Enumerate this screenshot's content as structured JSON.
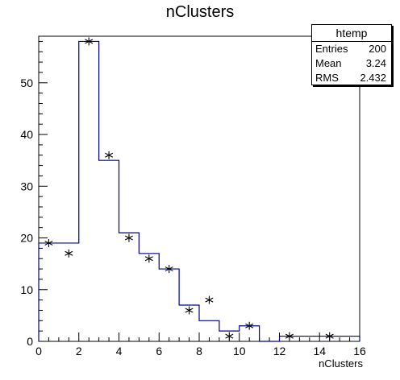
{
  "chart_data": {
    "type": "bar",
    "title": "nClusters",
    "xlabel": "nClusters",
    "ylabel": "",
    "xlim": [
      0,
      16
    ],
    "ylim": [
      0,
      59
    ],
    "x_ticks": [
      0,
      2,
      4,
      6,
      8,
      10,
      12,
      14,
      16
    ],
    "y_ticks": [
      0,
      10,
      20,
      30,
      40,
      50
    ],
    "bin_edges": [
      0,
      1,
      2,
      3,
      4,
      5,
      6,
      7,
      8,
      9,
      10,
      11,
      12,
      13,
      14,
      15,
      16
    ],
    "series": [
      {
        "style": "histogram-step",
        "color": "#00008b",
        "values": [
          19,
          19,
          58,
          35,
          21,
          17,
          14,
          7,
          4,
          2,
          3,
          0,
          1,
          1,
          1,
          1
        ]
      },
      {
        "style": "markers",
        "marker": "asterisk",
        "color": "#000000",
        "points": [
          [
            0.5,
            19
          ],
          [
            1.5,
            17
          ],
          [
            2.5,
            58
          ],
          [
            3.5,
            36
          ],
          [
            4.5,
            20
          ],
          [
            5.5,
            16
          ],
          [
            6.5,
            14
          ],
          [
            7.5,
            6
          ],
          [
            8.5,
            8
          ],
          [
            9.5,
            1
          ],
          [
            10.5,
            3
          ],
          [
            12.5,
            1
          ],
          [
            14.5,
            1
          ]
        ]
      }
    ],
    "legend": "top-right",
    "grid": false
  },
  "statbox": {
    "name": "htemp",
    "entries_label": "Entries",
    "entries_value": "200",
    "mean_label": "Mean",
    "mean_value": "3.24",
    "rms_label": "RMS",
    "rms_value": "2.432"
  }
}
